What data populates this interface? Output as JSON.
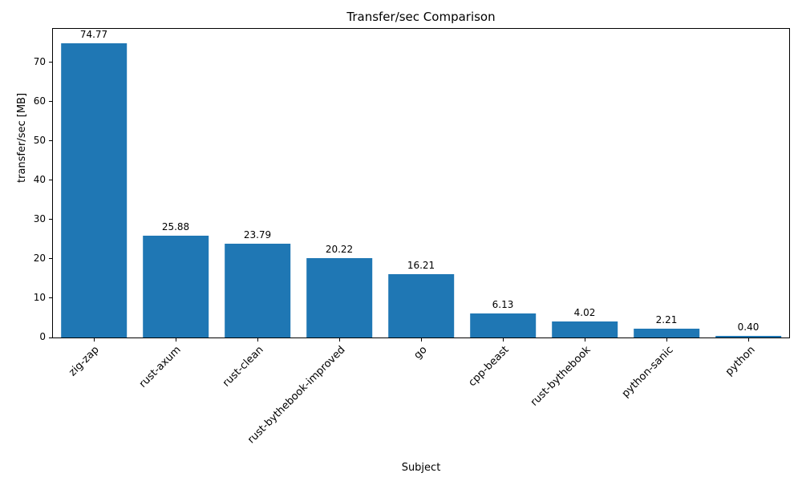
{
  "chart_data": {
    "type": "bar",
    "title": "Transfer/sec Comparison",
    "xlabel": "Subject",
    "ylabel": "transfer/sec [MB]",
    "categories": [
      "zig-zap",
      "rust-axum",
      "rust-clean",
      "rust-bythebook-improved",
      "go",
      "cpp-beast",
      "rust-bythebook",
      "python-sanic",
      "python"
    ],
    "values": [
      74.77,
      25.88,
      23.79,
      20.22,
      16.21,
      6.13,
      4.02,
      2.21,
      0.4
    ],
    "value_labels": [
      "74.77",
      "25.88",
      "23.79",
      "20.22",
      "16.21",
      "6.13",
      "4.02",
      "2.21",
      "0.40"
    ],
    "ylim": [
      0,
      78.5
    ],
    "yticks": [
      0,
      10,
      20,
      30,
      40,
      50,
      60,
      70
    ],
    "bar_color": "#1f77b4",
    "grid": false,
    "legend_position": "none"
  }
}
